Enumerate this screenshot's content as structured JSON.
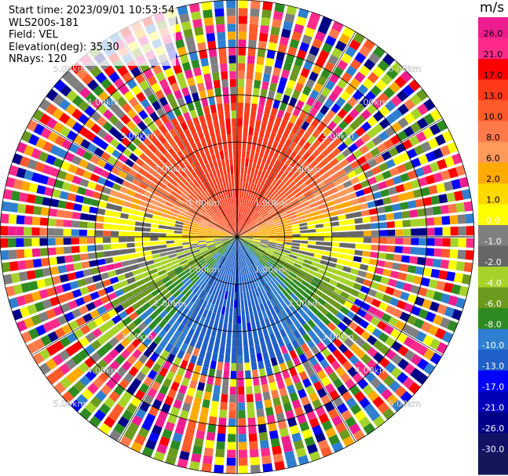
{
  "header": {
    "start_time": "Start time: 2023/09/01 10:53:54",
    "instrument": "WLS200s-181",
    "field": "Field: VEL",
    "elevation": "Elevation(deg): 35.30",
    "nrays": "NRays: 120"
  },
  "colorbar": {
    "unit": "m/s",
    "ticks": [
      "26.0",
      "21.0",
      "17.0",
      "13.0",
      "10.0",
      "8.0",
      "6.0",
      "2.0",
      "1.0",
      "0.0",
      "-1.0",
      "-2.0",
      "-4.0",
      "-6.0",
      "-8.0",
      "-10.0",
      "-13.0",
      "-17.0",
      "-21.0",
      "-26.0",
      "-30.0"
    ],
    "colors": [
      "#ee1d8f",
      "#ff2a8a",
      "#ff0000",
      "#ff3a1a",
      "#ff5a2a",
      "#ff7a4a",
      "#ff9a5a",
      "#ffaa00",
      "#ffd800",
      "#ffff00",
      "#7f7f7f",
      "#666666",
      "#a6d32a",
      "#6b9a1e",
      "#2e8b22",
      "#2f7fd0",
      "#1f5fc8",
      "#0000ff",
      "#0000b8",
      "#000088",
      "#111166",
      "#15155a"
    ]
  },
  "chart_data": {
    "type": "ppi",
    "title": "",
    "field": "VEL",
    "units": "m/s",
    "n_rays": 120,
    "elevation_deg": 35.3,
    "range_rings_km": [
      1.0,
      2.0,
      3.0,
      4.0,
      5.0
    ],
    "range_ring_labels": [
      "1.00km",
      "2.00km",
      "3.00km",
      "4.00km",
      "5.00km"
    ],
    "legend_position": "right",
    "grid": true
  }
}
